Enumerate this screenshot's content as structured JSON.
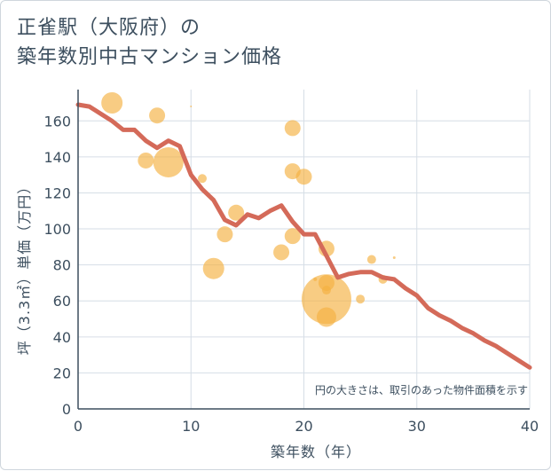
{
  "title_line1": "正雀駅（大阪府）の",
  "title_line2": "築年数別中古マンション価格",
  "chart_data": {
    "type": "scatter",
    "xlabel": "築年数（年）",
    "ylabel": "坪（3.3㎡）単価（万円）",
    "xlim": [
      0,
      40
    ],
    "ylim": [
      0,
      170
    ],
    "xticks": [
      0,
      10,
      20,
      30,
      40
    ],
    "yticks": [
      0,
      20,
      40,
      60,
      80,
      100,
      120,
      140,
      160
    ],
    "grid": true,
    "note": "円の大きさは、取引のあった物件面積を示す",
    "colors": {
      "bubble": "#f5b041",
      "line": "#d46a59",
      "grid": "#d6dee6",
      "text": "#3d4f5f"
    },
    "bubbles": [
      {
        "x": 3,
        "y": 170,
        "size": 12
      },
      {
        "x": 7,
        "y": 163,
        "size": 9
      },
      {
        "x": 6,
        "y": 138,
        "size": 9
      },
      {
        "x": 8,
        "y": 137,
        "size": 17
      },
      {
        "x": 10,
        "y": 168,
        "size": 1
      },
      {
        "x": 11,
        "y": 128,
        "size": 5
      },
      {
        "x": 14,
        "y": 109,
        "size": 9
      },
      {
        "x": 13,
        "y": 97,
        "size": 9
      },
      {
        "x": 12,
        "y": 78,
        "size": 12
      },
      {
        "x": 19,
        "y": 156,
        "size": 9
      },
      {
        "x": 19,
        "y": 132,
        "size": 9
      },
      {
        "x": 20,
        "y": 129,
        "size": 9
      },
      {
        "x": 19,
        "y": 96,
        "size": 9
      },
      {
        "x": 18,
        "y": 87,
        "size": 9
      },
      {
        "x": 22,
        "y": 89,
        "size": 9
      },
      {
        "x": 22,
        "y": 70,
        "size": 9
      },
      {
        "x": 22,
        "y": 61,
        "size": 28
      },
      {
        "x": 22,
        "y": 51,
        "size": 11
      },
      {
        "x": 22,
        "y": 66,
        "size": 5
      },
      {
        "x": 21,
        "y": 72,
        "size": 2
      },
      {
        "x": 25,
        "y": 61,
        "size": 5
      },
      {
        "x": 26,
        "y": 83,
        "size": 5
      },
      {
        "x": 27,
        "y": 72,
        "size": 5
      },
      {
        "x": 28,
        "y": 84,
        "size": 1.5
      }
    ],
    "line": {
      "x": [
        0,
        1,
        2,
        3,
        4,
        5,
        6,
        7,
        8,
        9,
        10,
        11,
        12,
        13,
        14,
        15,
        16,
        17,
        18,
        19,
        20,
        21,
        22,
        23,
        24,
        25,
        26,
        27,
        28,
        29,
        30,
        31,
        32,
        33,
        34,
        35,
        36,
        37,
        38,
        39,
        40
      ],
      "y": [
        169,
        168,
        164,
        160,
        155,
        155,
        149,
        145,
        149,
        146,
        130,
        122,
        116,
        105,
        102,
        108,
        106,
        110,
        113,
        104,
        97,
        97,
        85,
        73,
        75,
        76,
        76,
        73,
        72,
        67,
        63,
        56,
        52,
        49,
        45,
        42,
        38,
        35,
        31,
        27,
        23
      ]
    }
  }
}
